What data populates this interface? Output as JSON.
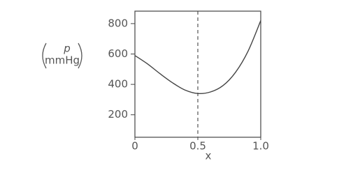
{
  "chart_data": {
    "type": "line",
    "ylabel": {
      "quantity": "p",
      "unit": "mmHg"
    },
    "xlabel": "x",
    "x": [
      0,
      0.1,
      0.2,
      0.3,
      0.4,
      0.5,
      0.6,
      0.7,
      0.8,
      0.9,
      1
    ],
    "values": [
      590,
      535,
      470,
      410,
      362,
      340,
      350,
      392,
      480,
      620,
      820
    ],
    "color": "#444444",
    "vline": 0.5,
    "xlim": [
      0,
      1
    ],
    "xticks": [
      0,
      0.5,
      {
        "value": 1,
        "label": "1.0"
      }
    ],
    "ylim": [
      52,
      882
    ],
    "yticks": [
      200,
      400,
      600,
      800
    ],
    "grid": false
  }
}
